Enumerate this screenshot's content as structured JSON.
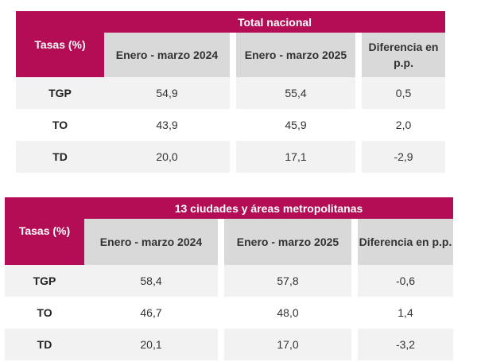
{
  "tables": [
    {
      "title": "Total nacional",
      "row_header": "Tasas (%)",
      "columns": [
        "Enero - marzo 2024",
        "Enero - marzo 2025",
        "Diferencia en p.p."
      ],
      "rows": [
        {
          "label": "TGP",
          "values": [
            "54,9",
            "55,4",
            "0,5"
          ]
        },
        {
          "label": "TO",
          "values": [
            "43,9",
            "45,9",
            "2,0"
          ]
        },
        {
          "label": "TD",
          "values": [
            "20,0",
            "17,1",
            "-2,9"
          ]
        }
      ]
    },
    {
      "title": "13 ciudades y áreas metropolitanas",
      "row_header": "Tasas (%)",
      "columns": [
        "Enero - marzo 2024",
        "Enero - marzo 2025",
        "Diferencia en p.p."
      ],
      "rows": [
        {
          "label": "TGP",
          "values": [
            "58,4",
            "57,8",
            "-0,6"
          ]
        },
        {
          "label": "TO",
          "values": [
            "46,7",
            "48,0",
            "1,4"
          ]
        },
        {
          "label": "TD",
          "values": [
            "20,1",
            "17,0",
            "-3,2"
          ]
        }
      ]
    }
  ],
  "colors": {
    "header_magenta": "#b30d55",
    "subheader_gray": "#d9d9d9",
    "row_shade": "#f2f2f2"
  }
}
